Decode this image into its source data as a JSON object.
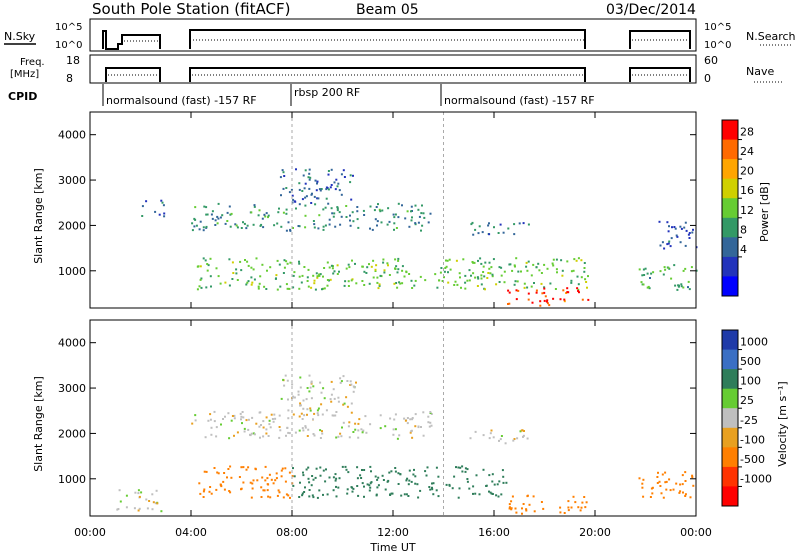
{
  "header": {
    "station": "South Pole Station (fitACF)",
    "beam": "Beam 05",
    "date": "03/Dec/2014"
  },
  "summary_panels": {
    "nsky_label": "N.Sky",
    "nsky_ticks": [
      "10^5",
      "10^0"
    ],
    "nsearch_label": "N.Search",
    "nsearch_ticks": [
      "10^5",
      "10^0"
    ],
    "freq_label_1": "Freq.",
    "freq_label_2": "[MHz]",
    "freq_ticks": [
      "18",
      "8"
    ],
    "nave_label": "Nave",
    "nave_ticks": [
      "60",
      "0"
    ],
    "cpid_label": "CPID",
    "cpid_segments": [
      {
        "label": "normalsound (fast) -157 RF",
        "start_h": 0.3,
        "end_h": 8.0
      },
      {
        "label": "rbsp 200 RF",
        "start_h": 8.0,
        "end_h": 14.0
      },
      {
        "label": "normalsound (fast) -157 RF",
        "start_h": 14.0,
        "end_h": 24.0
      }
    ]
  },
  "colorbars": {
    "power": {
      "label": "Power [dB]",
      "ticks": [
        "28",
        "24",
        "20",
        "16",
        "12",
        "8",
        "4"
      ],
      "colors": [
        "#ff0000",
        "#ff6a00",
        "#ffa500",
        "#cfcf00",
        "#66cc33",
        "#339966",
        "#336699",
        "#2233bb",
        "#0000ff"
      ]
    },
    "velocity": {
      "label": "Velocity [m s⁻¹]",
      "ticks": [
        "1000",
        "500",
        "100",
        "25",
        "-25",
        "-100",
        "-500",
        "-1000"
      ],
      "colors": [
        "#1f3aa8",
        "#3a6fc4",
        "#2f7d5a",
        "#66cc33",
        "#bfbfbf",
        "#e8a020",
        "#ff7f00",
        "#ff3300",
        "#ff0000"
      ]
    }
  },
  "chart_data": [
    {
      "type": "heatmap",
      "title": "South Pole Station (fitACF) Beam 05",
      "ylabel": "Slant Range [km]",
      "xlabel": "Time UT",
      "x_ticks": [
        "00:00",
        "04:00",
        "08:00",
        "12:00",
        "16:00",
        "20:00",
        "00:00"
      ],
      "y_ticks": [
        "1000",
        "2000",
        "3000",
        "4000"
      ],
      "xlim_hours": [
        0,
        24
      ],
      "ylim_km": [
        180,
        4500
      ],
      "colorbar": "Power [dB]",
      "bands": [
        {
          "t0": 2.0,
          "t1": 2.9,
          "r0": 2200,
          "r1": 2600,
          "level": 8
        },
        {
          "t0": 4.0,
          "t1": 13.5,
          "r0": 1900,
          "r1": 2500,
          "level": 10
        },
        {
          "t0": 7.5,
          "t1": 10.5,
          "r0": 2500,
          "r1": 3300,
          "level": 7
        },
        {
          "t0": 15.0,
          "t1": 17.5,
          "r0": 1800,
          "r1": 2100,
          "level": 8
        },
        {
          "t0": 4.2,
          "t1": 19.7,
          "r0": 600,
          "r1": 1300,
          "level": 14
        },
        {
          "t0": 16.5,
          "t1": 19.7,
          "r0": 250,
          "r1": 650,
          "level": 28
        },
        {
          "t0": 21.7,
          "t1": 24.0,
          "r0": 600,
          "r1": 1200,
          "level": 12
        },
        {
          "t0": 22.5,
          "t1": 24.0,
          "r0": 1500,
          "r1": 2200,
          "level": 6
        }
      ]
    },
    {
      "type": "heatmap",
      "ylabel": "Slant Range [km]",
      "xlabel": "Time UT",
      "x_ticks": [
        "00:00",
        "04:00",
        "08:00",
        "12:00",
        "16:00",
        "20:00",
        "00:00"
      ],
      "y_ticks": [
        "1000",
        "2000",
        "3000",
        "4000"
      ],
      "xlim_hours": [
        0,
        24
      ],
      "ylim_km": [
        180,
        4500
      ],
      "colorbar": "Velocity [m s⁻¹]",
      "bands": [
        {
          "t0": 4.0,
          "t1": 13.5,
          "r0": 1900,
          "r1": 2500,
          "velocity": 0
        },
        {
          "t0": 7.5,
          "t1": 10.5,
          "r0": 2500,
          "r1": 3300,
          "velocity": 0
        },
        {
          "t0": 15.0,
          "t1": 17.5,
          "r0": 1800,
          "r1": 2100,
          "velocity": 0
        },
        {
          "t0": 4.2,
          "t1": 8.0,
          "r0": 600,
          "r1": 1300,
          "velocity": -150
        },
        {
          "t0": 8.0,
          "t1": 16.5,
          "r0": 600,
          "r1": 1300,
          "velocity": 150
        },
        {
          "t0": 16.5,
          "t1": 19.7,
          "r0": 250,
          "r1": 650,
          "velocity": -300
        },
        {
          "t0": 21.7,
          "t1": 24.0,
          "r0": 600,
          "r1": 1200,
          "velocity": -200
        },
        {
          "t0": 1.0,
          "t1": 2.8,
          "r0": 300,
          "r1": 800,
          "velocity": 0
        }
      ]
    }
  ]
}
